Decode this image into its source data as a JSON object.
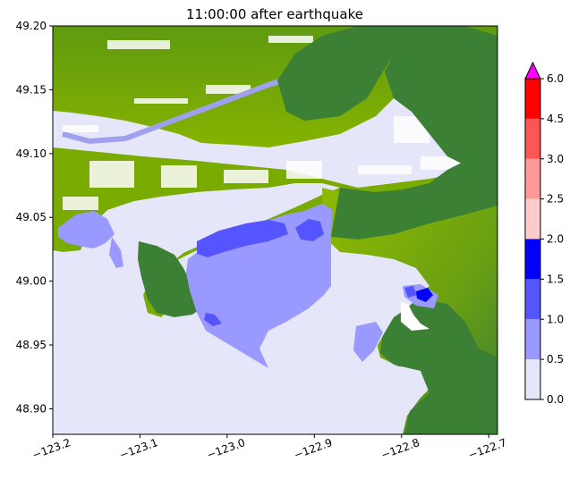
{
  "chart_data": {
    "type": "heatmap",
    "title": "11:00:00 after earthquake",
    "xlabel": "",
    "ylabel": "",
    "xlim": [
      -123.2,
      -122.69
    ],
    "ylim": [
      48.88,
      49.2
    ],
    "x_ticks": [
      -123.2,
      -123.1,
      -123.0,
      -122.9,
      -122.8,
      -122.7
    ],
    "x_tick_labels": [
      "−123.2",
      "−123.1",
      "−123.0",
      "−122.9",
      "−122.8",
      "−122.7"
    ],
    "y_ticks": [
      48.9,
      48.95,
      49.0,
      49.05,
      49.1,
      49.15,
      49.2
    ],
    "y_tick_labels": [
      "48.90",
      "48.95",
      "49.00",
      "49.05",
      "49.10",
      "49.15",
      "49.20"
    ],
    "grid": false,
    "colorbar": {
      "levels": [
        0.0,
        0.5,
        1.0,
        1.5,
        2.0,
        2.5,
        3.0,
        4.5,
        6.0
      ],
      "tick_labels": [
        "0.0",
        "0.5",
        "1.0",
        "1.5",
        "2.0",
        "2.5",
        "3.0",
        "4.5",
        "6.0"
      ],
      "colors": [
        "#e6e6fa",
        "#9999ff",
        "#5555ff",
        "#0000ff",
        "#ffcccc",
        "#ff9999",
        "#ff5555",
        "#ff0000"
      ],
      "extend_max_color": "#ff00ff"
    },
    "land_colors": {
      "lowland": "#7aab00",
      "highland": "#3b8035",
      "water": "#e6e6fa"
    }
  }
}
